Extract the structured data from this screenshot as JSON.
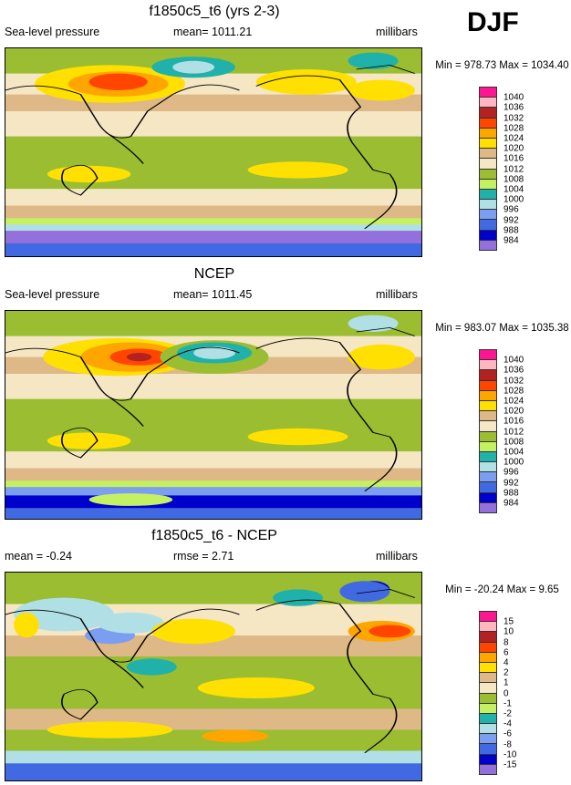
{
  "season": "DJF",
  "colors": [
    "#ff1493",
    "#ffb6c1",
    "#b22222",
    "#ff4500",
    "#ffa500",
    "#ffe000",
    "#deb887",
    "#f5e6c4",
    "#9abd32",
    "#c3f162",
    "#20b2aa",
    "#b0e0e6",
    "#7b9ef0",
    "#4169e1",
    "#0000cd",
    "#9370db"
  ],
  "panels": [
    {
      "title": "f1850c5_t6 (yrs 2-3)",
      "left": "Sea-level pressure",
      "center": "mean= 1011.21",
      "right": "millibars",
      "minmax": "Min = 978.73 Max = 1034.40",
      "levels": [
        "1040",
        "1036",
        "1032",
        "1028",
        "1024",
        "1020",
        "1016",
        "1012",
        "1008",
        "1004",
        "1000",
        "996",
        "992",
        "988",
        "984"
      ]
    },
    {
      "title": "NCEP",
      "left": "Sea-level pressure",
      "center": "mean= 1011.45",
      "right": "millibars",
      "minmax": "Min = 983.07 Max = 1035.38",
      "levels": [
        "1040",
        "1036",
        "1032",
        "1028",
        "1024",
        "1020",
        "1016",
        "1012",
        "1008",
        "1004",
        "1000",
        "996",
        "992",
        "988",
        "984"
      ]
    },
    {
      "title": "f1850c5_t6 - NCEP",
      "left": "mean =  -0.24",
      "center": "rmse =   2.71",
      "right": "millibars",
      "minmax": "Min = -20.24 Max =   9.65",
      "levels": [
        "15",
        "10",
        "8",
        "6",
        "4",
        "2",
        "1",
        "0",
        "-1",
        "-2",
        "-4",
        "-6",
        "-8",
        "-10",
        "-15"
      ]
    }
  ]
}
